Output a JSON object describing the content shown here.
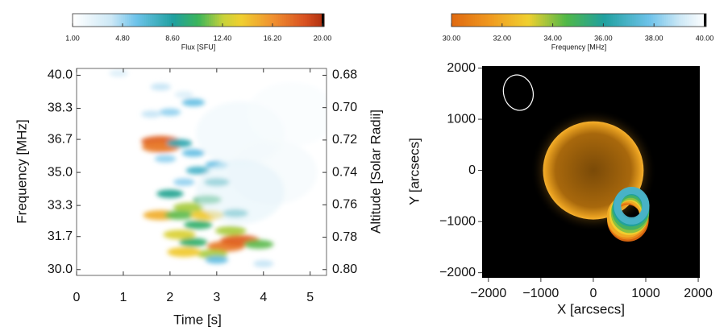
{
  "chart_data": [
    {
      "type": "heatmap",
      "colorbar_label": "Flux [SFU]",
      "colorbar_lim": [
        1,
        20
      ],
      "colorbar_ticks": [
        {
          "value": 1,
          "label": "1.00"
        },
        {
          "value": 4.8,
          "label": "4.80"
        },
        {
          "value": 8.6,
          "label": "8.60"
        },
        {
          "value": 12.4,
          "label": "12.40"
        },
        {
          "value": 16.2,
          "label": "16.20"
        },
        {
          "value": 20,
          "label": "20.00"
        }
      ],
      "xlabel": "Time [s]",
      "ylabel": "Frequency [MHz]",
      "y2label": "Altitude [Solar Radii]",
      "xlim": [
        0,
        5.35
      ],
      "xticks": [
        0,
        1,
        2,
        3,
        4,
        5
      ],
      "ylim": [
        29.7,
        40.35
      ],
      "yticks": [
        {
          "value": 30,
          "label": "30.0"
        },
        {
          "value": 31.7,
          "label": "31.7"
        },
        {
          "value": 33.3,
          "label": "33.3"
        },
        {
          "value": 35,
          "label": "35.0"
        },
        {
          "value": 36.7,
          "label": "36.7"
        },
        {
          "value": 38.3,
          "label": "38.3"
        },
        {
          "value": 40,
          "label": "40.0"
        }
      ],
      "y2lim": [
        0.8036,
        0.6758
      ],
      "y2ticks": [
        0.68,
        {
          "value": 0.7,
          "label": "0.70"
        },
        0.72,
        0.74,
        0.76,
        0.78,
        {
          "value": 0.8,
          "label": "0.80"
        }
      ],
      "times": [
        0.9,
        1.8,
        2.3,
        2.0,
        1.6,
        2.5,
        1.8,
        1.8,
        2.2,
        2.5,
        1.9,
        2.6,
        3.0,
        2.3,
        3.0,
        2.0,
        2.8,
        2.4,
        1.8,
        2.2,
        2.8,
        3.4,
        2.6,
        3.3,
        2.2,
        2.5,
        3.2,
        3.5,
        3.9,
        2.9,
        2.3,
        3.0,
        4.0,
        3.5,
        4.2,
        4.6,
        3.5
      ],
      "frequencies": [
        40.1,
        39.4,
        39.0,
        38.1,
        38.0,
        38.6,
        36.6,
        36.3,
        36.5,
        36.0,
        35.7,
        35.1,
        35.4,
        34.5,
        34.5,
        33.9,
        33.6,
        33.2,
        32.8,
        32.8,
        32.8,
        32.9,
        32.3,
        32.0,
        31.8,
        31.4,
        31.2,
        31.5,
        31.3,
        30.8,
        30.9,
        30.5,
        30.3,
        37.0,
        35.0,
        38.0,
        34.0
      ],
      "flux": [
        3,
        4,
        3,
        5,
        4,
        6,
        18,
        17,
        8,
        6,
        5,
        7,
        6,
        5,
        8,
        9,
        10,
        12,
        15,
        11,
        14,
        8,
        10,
        12,
        13,
        10,
        17,
        18,
        11,
        12,
        14,
        6,
        4,
        2,
        1.8,
        1.5,
        2.5
      ]
    },
    {
      "type": "image",
      "colorbar_label": "Frequency [MHz]",
      "colorbar_lim": [
        30,
        40
      ],
      "colorbar_ticks": [
        {
          "value": 30,
          "label": "30.00"
        },
        {
          "value": 32,
          "label": "32.00"
        },
        {
          "value": 34,
          "label": "34.00"
        },
        {
          "value": 36,
          "label": "36.00"
        },
        {
          "value": 38,
          "label": "38.00"
        },
        {
          "value": 40,
          "label": "40.00"
        }
      ],
      "xlabel": "X [arcsecs]",
      "ylabel": "Y [arcsecs]",
      "xlim": [
        -2120,
        2030
      ],
      "ylim": [
        -2100,
        2040
      ],
      "xticks": [
        {
          "value": -2000,
          "label": "−2000"
        },
        {
          "value": -1000,
          "label": "−1000"
        },
        0,
        1000,
        2000
      ],
      "yticks": [
        {
          "value": -2000,
          "label": "−2000"
        },
        {
          "value": -1000,
          "label": "−1000"
        },
        0,
        1000,
        2000
      ],
      "sun": {
        "x": 0,
        "y": 0,
        "r": 960
      },
      "beam": {
        "x": -1430,
        "y": 1520,
        "rx": 280,
        "ry": 350
      },
      "contours": {
        "frequency": [
          30,
          31,
          32,
          33,
          34,
          35,
          36,
          37
        ],
        "x": [
          660,
          650,
          640,
          680,
          700,
          710,
          720,
          730
        ],
        "y": [
          -960,
          -930,
          -900,
          -860,
          -830,
          -780,
          -720,
          -690
        ],
        "r": [
          400,
          390,
          380,
          370,
          360,
          350,
          340,
          330
        ]
      }
    }
  ]
}
